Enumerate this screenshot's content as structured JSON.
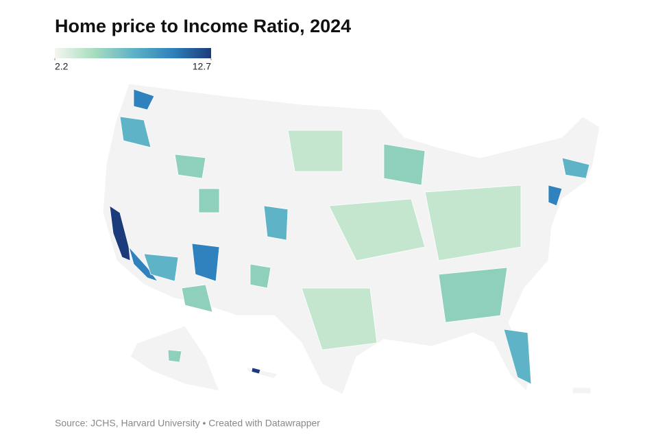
{
  "title": "Home price to Income Ratio, 2024",
  "legend": {
    "min": 2.2,
    "max": 12.7,
    "colors": [
      "#f3f7ef",
      "#a9dcc0",
      "#5fb3c6",
      "#2f82bd",
      "#1c3b7a"
    ]
  },
  "source": "Source: JCHS, Harvard University • Created with Datawrapper"
}
